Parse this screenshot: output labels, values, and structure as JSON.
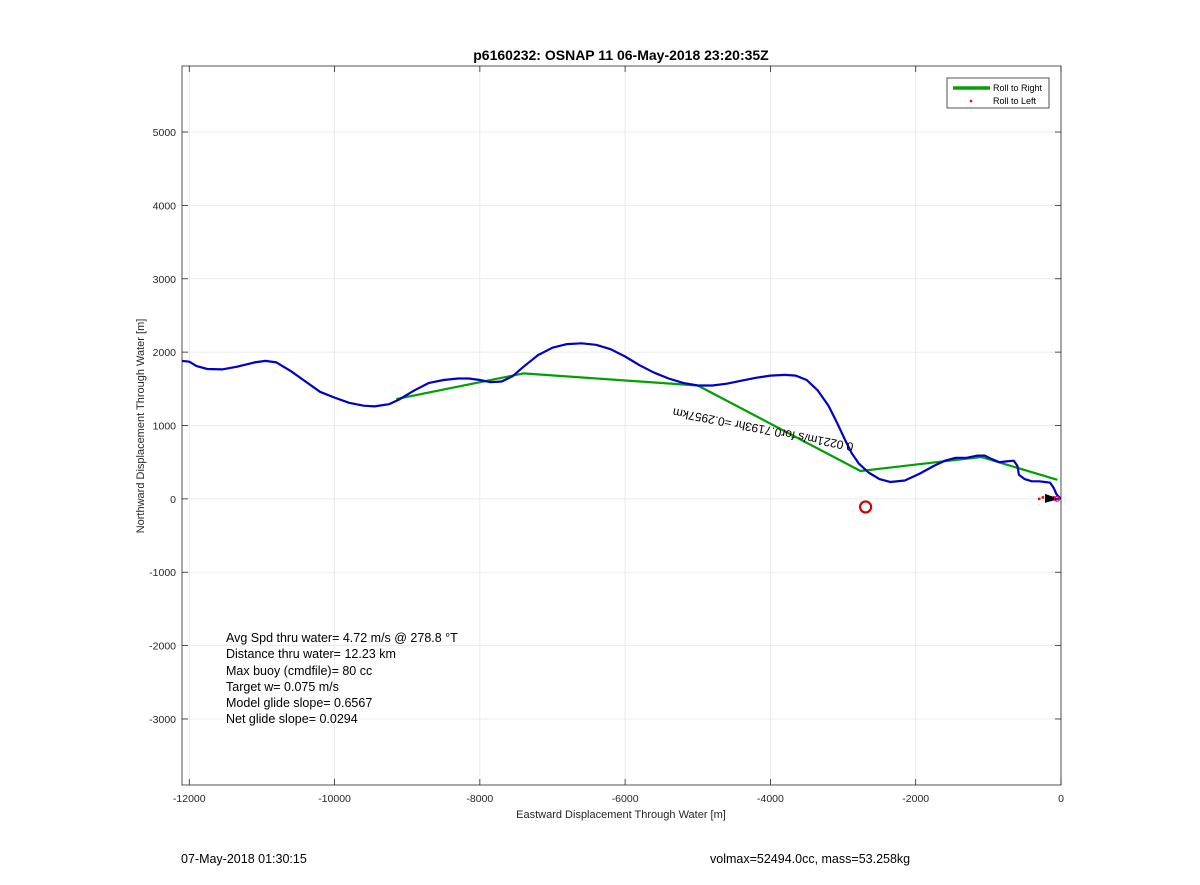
{
  "chart_data": {
    "type": "line",
    "title": "p6160232: OSNAP 11 06-May-2018 23:20:35Z",
    "xlabel": "Eastward Displacement Through Water [m]",
    "ylabel": "Northward Displacement Through Water [m]",
    "xlim": [
      -12100,
      0
    ],
    "ylim": [
      -3900,
      5900
    ],
    "xticks": [
      -12000,
      -10000,
      -8000,
      -6000,
      -4000,
      -2000,
      0
    ],
    "yticks": [
      -3000,
      -2000,
      -1000,
      0,
      1000,
      2000,
      3000,
      4000,
      5000
    ],
    "grid": true,
    "legend_position": "top-right",
    "legend": [
      "Roll to Right",
      "Roll to Left"
    ],
    "series": [
      {
        "name": "track",
        "color": "#0000c8",
        "points": [
          [
            -12100,
            1880
          ],
          [
            -12000,
            1870
          ],
          [
            -11900,
            1810
          ],
          [
            -11750,
            1770
          ],
          [
            -11550,
            1765
          ],
          [
            -11350,
            1800
          ],
          [
            -11100,
            1860
          ],
          [
            -10950,
            1880
          ],
          [
            -10800,
            1860
          ],
          [
            -10600,
            1740
          ],
          [
            -10400,
            1600
          ],
          [
            -10200,
            1460
          ],
          [
            -10000,
            1380
          ],
          [
            -9800,
            1310
          ],
          [
            -9600,
            1270
          ],
          [
            -9450,
            1260
          ],
          [
            -9250,
            1290
          ],
          [
            -9100,
            1360
          ],
          [
            -8900,
            1480
          ],
          [
            -8700,
            1580
          ],
          [
            -8500,
            1620
          ],
          [
            -8300,
            1640
          ],
          [
            -8150,
            1640
          ],
          [
            -8000,
            1620
          ],
          [
            -7850,
            1590
          ],
          [
            -7700,
            1600
          ],
          [
            -7550,
            1670
          ],
          [
            -7400,
            1800
          ],
          [
            -7200,
            1960
          ],
          [
            -7000,
            2060
          ],
          [
            -6800,
            2110
          ],
          [
            -6600,
            2120
          ],
          [
            -6400,
            2100
          ],
          [
            -6200,
            2040
          ],
          [
            -6000,
            1940
          ],
          [
            -5800,
            1820
          ],
          [
            -5600,
            1720
          ],
          [
            -5400,
            1640
          ],
          [
            -5200,
            1580
          ],
          [
            -5000,
            1545
          ],
          [
            -4800,
            1545
          ],
          [
            -4600,
            1570
          ],
          [
            -4400,
            1610
          ],
          [
            -4200,
            1650
          ],
          [
            -4000,
            1680
          ],
          [
            -3800,
            1690
          ],
          [
            -3650,
            1680
          ],
          [
            -3500,
            1620
          ],
          [
            -3350,
            1480
          ],
          [
            -3200,
            1270
          ],
          [
            -3080,
            1030
          ],
          [
            -2980,
            820
          ],
          [
            -2880,
            620
          ],
          [
            -2780,
            480
          ],
          [
            -2650,
            360
          ],
          [
            -2500,
            270
          ],
          [
            -2350,
            230
          ],
          [
            -2150,
            250
          ],
          [
            -1950,
            340
          ],
          [
            -1750,
            450
          ],
          [
            -1600,
            520
          ],
          [
            -1450,
            560
          ],
          [
            -1300,
            560
          ],
          [
            -1150,
            590
          ],
          [
            -1050,
            590
          ],
          [
            -950,
            540
          ],
          [
            -850,
            500
          ],
          [
            -750,
            510
          ],
          [
            -650,
            520
          ],
          [
            -600,
            450
          ],
          [
            -580,
            330
          ],
          [
            -500,
            270
          ],
          [
            -400,
            240
          ],
          [
            -300,
            240
          ],
          [
            -220,
            230
          ],
          [
            -150,
            220
          ],
          [
            -100,
            150
          ],
          [
            -60,
            60
          ],
          [
            0,
            0
          ]
        ]
      },
      {
        "name": "Roll to Right",
        "color": "#00a000",
        "points": [
          [
            -9150,
            1360
          ],
          [
            -7400,
            1710
          ],
          [
            -5000,
            1545
          ],
          [
            -2760,
            380
          ],
          [
            -1100,
            570
          ],
          [
            -50,
            260
          ]
        ]
      },
      {
        "name": "Roll to Left",
        "color": "#ff0000",
        "points": [
          [
            -300,
            0
          ],
          [
            -250,
            20
          ],
          [
            -200,
            -10
          ],
          [
            -150,
            10
          ],
          [
            -100,
            20
          ],
          [
            -80,
            -10
          ],
          [
            -40,
            0
          ]
        ]
      }
    ],
    "markers": [
      {
        "name": "circle-marker",
        "x": -2690,
        "y": -110,
        "color": "#cc0000"
      }
    ],
    "annotation": {
      "text": "0.0221m/s for0.7193hr =0.2957km",
      "x": -2850,
      "y": 760
    }
  },
  "stats": {
    "avg_speed": "Avg Spd thru water=  4.72 m/s @ 278.8 °T",
    "distance": "Distance thru water= 12.23 km",
    "max_buoy": "Max buoy (cmdfile)= 80 cc",
    "target_w": "Target w= 0.075 m/s",
    "model_glide": "Model glide slope= 0.6567",
    "net_glide": "Net glide slope= 0.0294"
  },
  "footer": {
    "date": "07-May-2018 01:30:15",
    "volmax": "volmax=52494.0cc, mass=53.258kg"
  }
}
